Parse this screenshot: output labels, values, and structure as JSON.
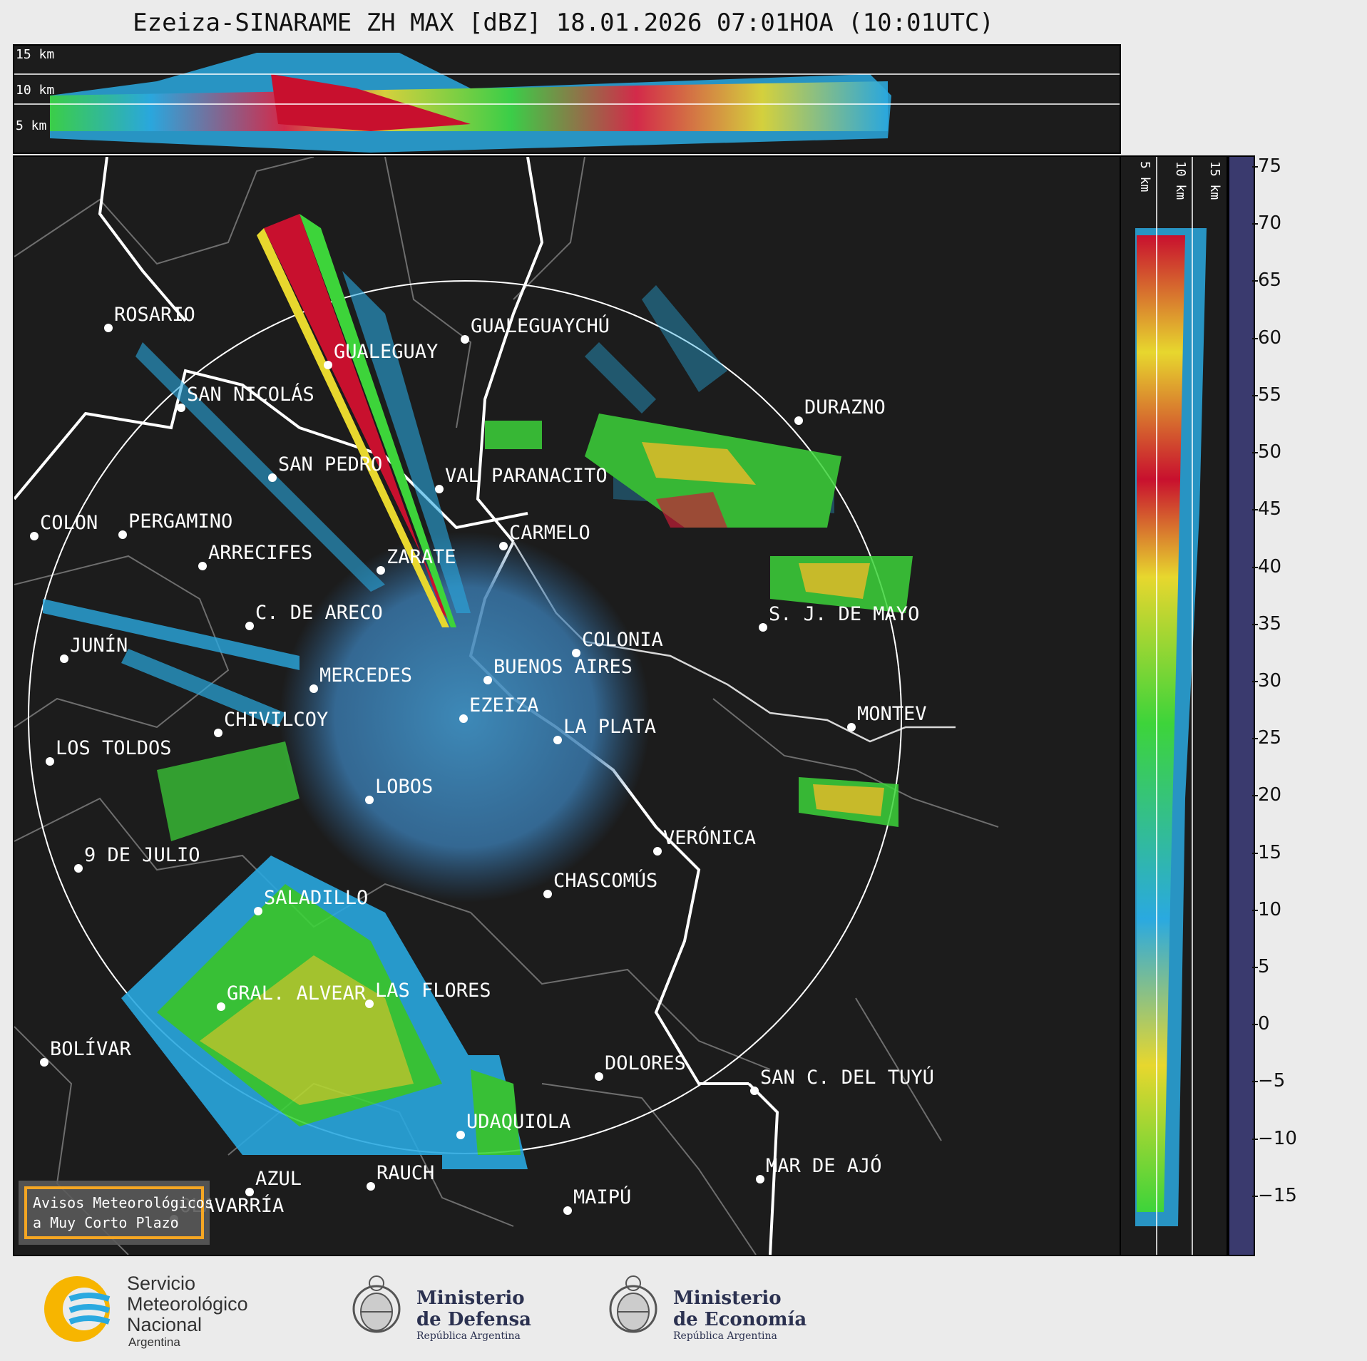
{
  "title": "Ezeiza-SINARAME ZH MAX [dBZ] 18.01.2026 07:01HOA (10:01UTC)",
  "height_labels": [
    "15 km",
    "10 km",
    "5 km"
  ],
  "cities": [
    {
      "name": "ROSARIO"
    },
    {
      "name": "GUALEGUAYCHÚ"
    },
    {
      "name": "GUALEGUAY"
    },
    {
      "name": "SAN NICOLÁS"
    },
    {
      "name": "DURAZNO"
    },
    {
      "name": "SAN PEDRO"
    },
    {
      "name": "VAL PARANACITO"
    },
    {
      "name": "COLON"
    },
    {
      "name": "PERGAMINO"
    },
    {
      "name": "CARMELO"
    },
    {
      "name": "ARRECIFES"
    },
    {
      "name": "ZARATE"
    },
    {
      "name": "S. J. DE MAYO"
    },
    {
      "name": "C. DE ARECO"
    },
    {
      "name": "COLONIA"
    },
    {
      "name": "JUNÍN"
    },
    {
      "name": "BUENOS AIRES"
    },
    {
      "name": "MERCEDES"
    },
    {
      "name": "EZEIZA"
    },
    {
      "name": "MONTEV"
    },
    {
      "name": "CHIVILCOY"
    },
    {
      "name": "LA PLATA"
    },
    {
      "name": "LOS TOLDOS"
    },
    {
      "name": "LOBOS"
    },
    {
      "name": "VERÓNICA"
    },
    {
      "name": "9 DE JULIO"
    },
    {
      "name": "CHASCOMÚS"
    },
    {
      "name": "SALADILLO"
    },
    {
      "name": "GRAL. ALVEAR"
    },
    {
      "name": "LAS FLORES"
    },
    {
      "name": "BOLÍVAR"
    },
    {
      "name": "DOLORES"
    },
    {
      "name": "SAN C. DEL TUYÚ"
    },
    {
      "name": "UDAQUIOLA"
    },
    {
      "name": "MAR DE AJÓ"
    },
    {
      "name": "AZUL"
    },
    {
      "name": "RAUCH"
    },
    {
      "name": "MAIPÚ"
    },
    {
      "name": "OLAVARRÍA"
    }
  ],
  "notice": {
    "line1": "Avisos Meteorológicos",
    "line2": "a Muy Corto Plazo"
  },
  "colorbar": {
    "ticks": [
      "75",
      "70",
      "65",
      "60",
      "55",
      "50",
      "45",
      "40",
      "35",
      "30",
      "25",
      "20",
      "15",
      "10",
      "5",
      "0",
      "−5",
      "−10",
      "−15"
    ],
    "range": [
      -20,
      76
    ]
  },
  "logos": {
    "smn": [
      "Servicio",
      "Meteorológico",
      "Nacional",
      "Argentina"
    ],
    "defensa": [
      "Ministerio",
      "de Defensa",
      "República Argentina"
    ],
    "economia": [
      "Ministerio",
      "de Economía",
      "República Argentina"
    ]
  },
  "colors": {
    "background": "#1c1c1c",
    "accent": "#f5a623",
    "smn_blue": "#2aa9e0",
    "smn_yellow": "#f7b500"
  }
}
